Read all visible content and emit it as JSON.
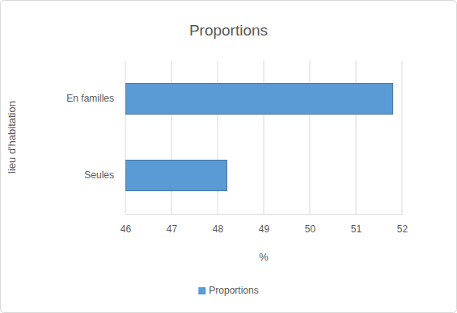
{
  "chart_data": {
    "type": "bar",
    "title": "Proportions",
    "orientation": "horizontal",
    "categories": [
      "En familles",
      "Seules"
    ],
    "series": [
      {
        "name": "Proportions",
        "color": "#5b9bd5",
        "values": [
          51.8,
          48.2
        ]
      }
    ],
    "x_label": "%",
    "y_label": "lieu d'habitation",
    "xlim": [
      46,
      52
    ],
    "xticks": [
      46,
      47,
      48,
      49,
      50,
      51,
      52
    ],
    "grid": true,
    "legend": "bottom"
  }
}
